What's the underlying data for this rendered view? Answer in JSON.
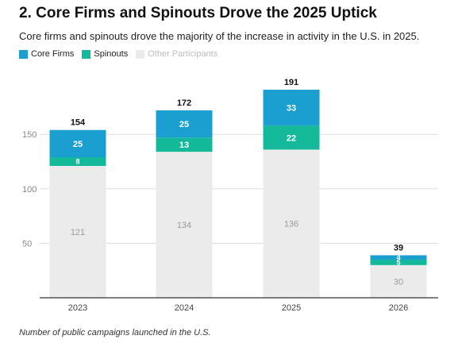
{
  "title": "2. Core Firms and Spinouts Drove the 2025 Uptick",
  "subtitle": "Core firms and spinouts drove the majority of the increase in activity in the U.S. in 2025.",
  "footnote": "Number of public campaigns launched in the U.S.",
  "colors": {
    "core_firms": "#1a9fd0",
    "spinouts": "#14b99b",
    "other": "#ebebeb",
    "grid": "#dddddd",
    "axis": "#333333",
    "tick_text": "#888888"
  },
  "chart_data": {
    "type": "bar",
    "stacked": true,
    "categories": [
      "2023",
      "2024",
      "2025",
      "2026"
    ],
    "series": [
      {
        "name": "Other Participants",
        "values": [
          121,
          134,
          136,
          30
        ]
      },
      {
        "name": "Spinouts",
        "values": [
          8,
          13,
          22,
          5
        ]
      },
      {
        "name": "Core Firms",
        "values": [
          25,
          25,
          33,
          4
        ]
      }
    ],
    "totals": [
      154,
      172,
      191,
      39
    ],
    "legend": [
      "Core Firms",
      "Spinouts",
      "Other Participants"
    ],
    "legend_position": "top-left",
    "y_ticks": [
      50,
      100,
      150
    ],
    "ylim": [
      0,
      200
    ],
    "grid": true
  }
}
